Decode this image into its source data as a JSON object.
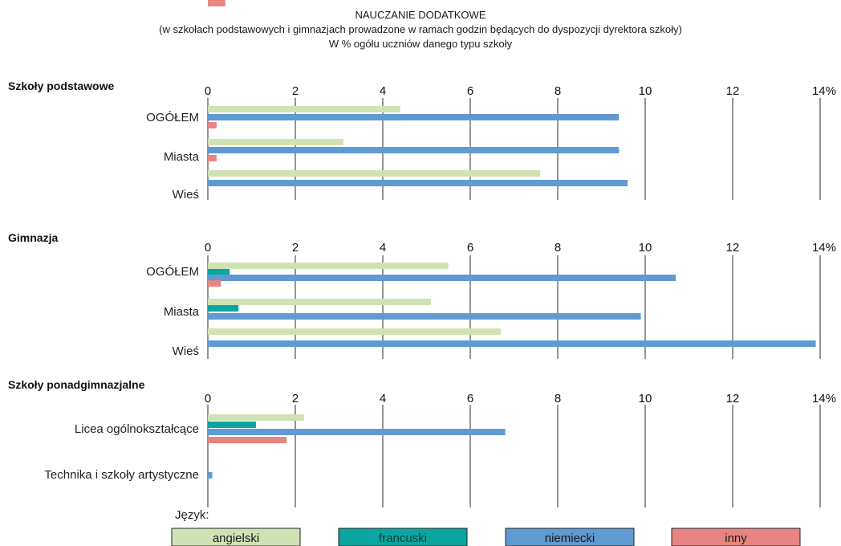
{
  "chart_data": {
    "type": "bar",
    "title_lines": [
      "NAUCZANIE DODATKOWE",
      "(w szkołach podstawowych i gimnazjach prowadzone w ramach godzin będących do dyspozycji dyrektora szkoły)",
      "W % ogółu uczniów danego typu szkoły"
    ],
    "tick_labels": [
      "0",
      "2",
      "4",
      "6",
      "8",
      "10",
      "12",
      "14%"
    ],
    "xlim": [
      0,
      14
    ],
    "grid": true,
    "legend_label": "Język:",
    "legend_position": "bottom",
    "series_meta": [
      {
        "key": "angielski",
        "name": "angielski",
        "color": "#cfe2b4"
      },
      {
        "key": "francuski",
        "name": "francuski",
        "color": "#0aa5a0"
      },
      {
        "key": "niemiecki",
        "name": "niemiecki",
        "color": "#5f9ad2"
      },
      {
        "key": "inny",
        "name": "inny",
        "color": "#e88582"
      }
    ],
    "panels": [
      {
        "title": "Szkoły podstawowe",
        "categories": [
          "OGÓŁEM",
          "Miasta",
          "Wieś"
        ],
        "series": {
          "angielski": [
            4.4,
            3.1,
            7.6
          ],
          "francuski": [
            0,
            0,
            0
          ],
          "niemiecki": [
            9.4,
            9.4,
            9.6
          ],
          "inny": [
            0.2,
            0.2,
            0
          ]
        }
      },
      {
        "title": "Gimnazja",
        "categories": [
          "OGÓŁEM",
          "Miasta",
          "Wieś"
        ],
        "series": {
          "angielski": [
            5.5,
            5.1,
            6.7
          ],
          "francuski": [
            0.5,
            0.7,
            0
          ],
          "niemiecki": [
            10.7,
            9.9,
            13.9
          ],
          "inny": [
            0.3,
            0.4,
            0
          ]
        }
      },
      {
        "title": "Szkoły ponadgimnazjalne",
        "categories": [
          "Licea ogólnokształcące",
          "Technika i szkoły artystyczne"
        ],
        "series": {
          "angielski": [
            2.2,
            0
          ],
          "francuski": [
            1.1,
            0
          ],
          "niemiecki": [
            6.8,
            0.1
          ],
          "inny": [
            1.8,
            0
          ]
        }
      }
    ]
  }
}
